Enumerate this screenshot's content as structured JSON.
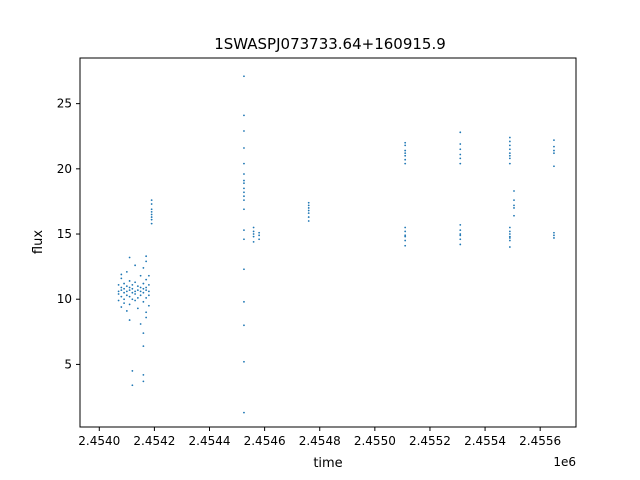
{
  "chart_data": {
    "type": "scatter",
    "title": "1SWASPJ073733.64+160915.9",
    "xlabel": "time",
    "ylabel": "flux",
    "x_offset_label": "1e6",
    "xlim": [
      2.45393,
      2.45573
    ],
    "ylim": [
      0.2,
      28.5
    ],
    "grid": false,
    "marker_color": "#1f77b4",
    "x_ticks": [
      2.454,
      2.4542,
      2.4544,
      2.4546,
      2.4548,
      2.455,
      2.4552,
      2.4554,
      2.4556
    ],
    "x_tick_labels": [
      "2.4540",
      "2.4542",
      "2.4544",
      "2.4546",
      "2.4548",
      "2.4550",
      "2.4552",
      "2.4554",
      "2.4556"
    ],
    "y_ticks": [
      5,
      10,
      15,
      20,
      25
    ],
    "y_tick_labels": [
      "5",
      "10",
      "15",
      "20",
      "25"
    ],
    "series": [
      {
        "points": [
          [
            2.45407,
            10.6
          ],
          [
            2.45407,
            11.1
          ],
          [
            2.45407,
            9.9
          ],
          [
            2.45407,
            10.4
          ],
          [
            2.45408,
            10.9
          ],
          [
            2.45408,
            11.6
          ],
          [
            2.45408,
            10.2
          ],
          [
            2.45408,
            10.7
          ],
          [
            2.45408,
            9.4
          ],
          [
            2.45408,
            11.9
          ],
          [
            2.45409,
            10.5
          ],
          [
            2.45409,
            10.8
          ],
          [
            2.45409,
            11.2
          ],
          [
            2.45409,
            10.0
          ],
          [
            2.45409,
            9.7
          ],
          [
            2.4541,
            10.6
          ],
          [
            2.4541,
            11.0
          ],
          [
            2.4541,
            10.3
          ],
          [
            2.4541,
            12.1
          ],
          [
            2.4541,
            9.1
          ],
          [
            2.45411,
            10.7
          ],
          [
            2.45411,
            10.2
          ],
          [
            2.45411,
            11.4
          ],
          [
            2.45411,
            10.9
          ],
          [
            2.45411,
            9.6
          ],
          [
            2.45411,
            13.2
          ],
          [
            2.45411,
            8.4
          ],
          [
            2.45412,
            10.5
          ],
          [
            2.45412,
            11.1
          ],
          [
            2.45412,
            10.0
          ],
          [
            2.45412,
            10.8
          ],
          [
            2.45412,
            3.4
          ],
          [
            2.45412,
            4.5
          ],
          [
            2.45413,
            10.6
          ],
          [
            2.45413,
            11.3
          ],
          [
            2.45413,
            9.9
          ],
          [
            2.45413,
            10.4
          ],
          [
            2.45413,
            12.6
          ],
          [
            2.45414,
            10.7
          ],
          [
            2.45414,
            10.1
          ],
          [
            2.45414,
            11.0
          ],
          [
            2.45414,
            9.3
          ],
          [
            2.45415,
            10.6
          ],
          [
            2.45415,
            10.9
          ],
          [
            2.45415,
            10.3
          ],
          [
            2.45415,
            11.8
          ],
          [
            2.45415,
            8.1
          ],
          [
            2.45416,
            10.5
          ],
          [
            2.45416,
            11.2
          ],
          [
            2.45416,
            10.8
          ],
          [
            2.45416,
            9.8
          ],
          [
            2.45416,
            12.4
          ],
          [
            2.45416,
            7.4
          ],
          [
            2.45416,
            6.4
          ],
          [
            2.45416,
            4.2
          ],
          [
            2.45416,
            3.7
          ],
          [
            2.45417,
            10.7
          ],
          [
            2.45417,
            11.5
          ],
          [
            2.45417,
            10.1
          ],
          [
            2.45417,
            10.9
          ],
          [
            2.45417,
            12.9
          ],
          [
            2.45417,
            9.0
          ],
          [
            2.45417,
            8.6
          ],
          [
            2.45417,
            13.3
          ],
          [
            2.45418,
            10.6
          ],
          [
            2.45418,
            11.1
          ],
          [
            2.45418,
            10.3
          ],
          [
            2.45418,
            11.8
          ],
          [
            2.45418,
            9.5
          ],
          [
            2.45419,
            16.1
          ],
          [
            2.45419,
            16.5
          ],
          [
            2.45419,
            16.9
          ],
          [
            2.45419,
            17.3
          ],
          [
            2.45419,
            15.8
          ],
          [
            2.45419,
            16.7
          ],
          [
            2.45419,
            17.6
          ],
          [
            2.45419,
            16.3
          ],
          [
            2.454525,
            18.2
          ],
          [
            2.454525,
            18.9
          ],
          [
            2.454525,
            19.6
          ],
          [
            2.454525,
            17.6
          ],
          [
            2.454525,
            20.4
          ],
          [
            2.454525,
            21.6
          ],
          [
            2.454525,
            22.9
          ],
          [
            2.454525,
            24.1
          ],
          [
            2.454525,
            27.1
          ],
          [
            2.454525,
            16.9
          ],
          [
            2.454525,
            15.3
          ],
          [
            2.454525,
            14.6
          ],
          [
            2.454525,
            12.3
          ],
          [
            2.454525,
            9.8
          ],
          [
            2.454525,
            8.0
          ],
          [
            2.454525,
            5.2
          ],
          [
            2.454525,
            1.3
          ],
          [
            2.454525,
            18.5
          ],
          [
            2.454525,
            19.1
          ],
          [
            2.454525,
            17.9
          ],
          [
            2.45456,
            14.8
          ],
          [
            2.45456,
            15.2
          ],
          [
            2.45456,
            14.4
          ],
          [
            2.45456,
            15.5
          ],
          [
            2.45456,
            15.0
          ],
          [
            2.45458,
            14.9
          ],
          [
            2.45458,
            15.1
          ],
          [
            2.45458,
            14.6
          ],
          [
            2.45476,
            16.6
          ],
          [
            2.45476,
            17.0
          ],
          [
            2.45476,
            17.4
          ],
          [
            2.45476,
            16.3
          ],
          [
            2.45476,
            16.8
          ],
          [
            2.45476,
            17.2
          ],
          [
            2.45476,
            16.0
          ],
          [
            2.45511,
            21.0
          ],
          [
            2.45511,
            21.4
          ],
          [
            2.45511,
            20.7
          ],
          [
            2.45511,
            21.8
          ],
          [
            2.45511,
            20.4
          ],
          [
            2.45511,
            21.2
          ],
          [
            2.45511,
            22.0
          ],
          [
            2.45511,
            14.8
          ],
          [
            2.45511,
            15.2
          ],
          [
            2.45511,
            14.5
          ],
          [
            2.45511,
            15.5
          ],
          [
            2.45511,
            14.1
          ],
          [
            2.45511,
            14.9
          ],
          [
            2.45531,
            21.1
          ],
          [
            2.45531,
            21.5
          ],
          [
            2.45531,
            20.8
          ],
          [
            2.45531,
            21.9
          ],
          [
            2.45531,
            20.4
          ],
          [
            2.45531,
            22.8
          ],
          [
            2.45531,
            14.9
          ],
          [
            2.45531,
            15.3
          ],
          [
            2.45531,
            14.6
          ],
          [
            2.45531,
            15.7
          ],
          [
            2.45531,
            14.2
          ],
          [
            2.45531,
            15.0
          ],
          [
            2.45549,
            21.0
          ],
          [
            2.45549,
            21.5
          ],
          [
            2.45549,
            20.8
          ],
          [
            2.45549,
            22.1
          ],
          [
            2.45549,
            20.4
          ],
          [
            2.45549,
            21.8
          ],
          [
            2.45549,
            22.4
          ],
          [
            2.45549,
            21.2
          ],
          [
            2.45549,
            14.8
          ],
          [
            2.45549,
            15.2
          ],
          [
            2.45549,
            14.5
          ],
          [
            2.45549,
            15.5
          ],
          [
            2.45549,
            14.0
          ],
          [
            2.45549,
            15.0
          ],
          [
            2.45549,
            14.7
          ],
          [
            2.455505,
            17.2
          ],
          [
            2.455505,
            17.6
          ],
          [
            2.455505,
            17.0
          ],
          [
            2.455505,
            18.3
          ],
          [
            2.455505,
            16.4
          ],
          [
            2.45565,
            21.4
          ],
          [
            2.45565,
            21.7
          ],
          [
            2.45565,
            21.2
          ],
          [
            2.45565,
            22.2
          ],
          [
            2.45565,
            20.2
          ],
          [
            2.45565,
            14.9
          ],
          [
            2.45565,
            15.1
          ],
          [
            2.45565,
            14.7
          ]
        ]
      }
    ]
  }
}
